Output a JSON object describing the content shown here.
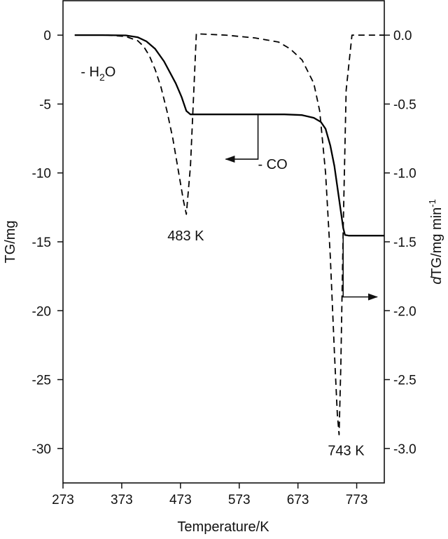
{
  "chart_data": {
    "type": "line",
    "xlabel": "Temperature/K",
    "ylabel": "TG/mg",
    "y2label_prefix": "d",
    "y2label_rest": "TG/mg min",
    "y2label_sup": "-1",
    "xlim": [
      273,
      820
    ],
    "ylim": [
      -32.5,
      2.5
    ],
    "y2lim": [
      -3.25,
      0.25
    ],
    "xticks": [
      "273",
      "373",
      "473",
      "573",
      "673",
      "773"
    ],
    "xtick_values": [
      273,
      373,
      473,
      573,
      673,
      773
    ],
    "yticks": [
      "0",
      "-5",
      "-10",
      "-15",
      "-20",
      "-25",
      "-30"
    ],
    "ytick_values": [
      0,
      -5,
      -10,
      -15,
      -20,
      -25,
      -30
    ],
    "y2ticks": [
      "0.0",
      "-0.5",
      "-1.0",
      "-1.5",
      "-2.0",
      "-2.5",
      "-3.0"
    ],
    "y2tick_values": [
      0,
      -0.5,
      -1.0,
      -1.5,
      -2.0,
      -2.5,
      -3.0
    ],
    "series": [
      {
        "axis": "left",
        "line_style": "solid",
        "x": [
          293,
          340,
          380,
          400,
          415,
          430,
          445,
          455,
          465,
          475,
          483,
          490,
          500,
          550,
          600,
          650,
          680,
          700,
          712,
          720,
          728,
          735,
          740,
          745,
          750,
          753,
          760,
          780,
          800,
          820
        ],
        "y": [
          0,
          0,
          -0.02,
          -0.15,
          -0.45,
          -1.0,
          -1.9,
          -2.7,
          -3.5,
          -4.5,
          -5.5,
          -5.75,
          -5.75,
          -5.75,
          -5.75,
          -5.75,
          -5.8,
          -6.0,
          -6.3,
          -6.8,
          -8.0,
          -9.5,
          -11.0,
          -12.5,
          -14.0,
          -14.5,
          -14.55,
          -14.55,
          -14.55,
          -14.55
        ]
      },
      {
        "axis": "right",
        "line_style": "dashed",
        "x": [
          293,
          350,
          380,
          400,
          410,
          420,
          430,
          440,
          450,
          460,
          470,
          478,
          483,
          490,
          500,
          550,
          600,
          640,
          660,
          680,
          700,
          710,
          720,
          728,
          735,
          740,
          743,
          746,
          750,
          755,
          765,
          820
        ],
        "y": [
          0,
          0,
          -0.01,
          -0.04,
          -0.08,
          -0.15,
          -0.25,
          -0.38,
          -0.55,
          -0.75,
          -1.0,
          -1.2,
          -1.3,
          -0.95,
          0.01,
          0,
          -0.02,
          -0.05,
          -0.1,
          -0.18,
          -0.35,
          -0.55,
          -1.0,
          -1.6,
          -2.3,
          -2.75,
          -2.9,
          -2.4,
          -1.4,
          -0.4,
          0,
          0
        ]
      }
    ],
    "annotations": [
      {
        "kind": "label",
        "text_main": "- H",
        "text_sub": "2",
        "text_tail": "O",
        "x": 333,
        "y": -3.0
      },
      {
        "kind": "label",
        "text_main": "- CO",
        "x": 630,
        "y": -9.7
      },
      {
        "kind": "label",
        "text": "483 K",
        "x": 482,
        "y": -14.9
      },
      {
        "kind": "label",
        "text": "743 K",
        "x": 755,
        "y": -30.5
      }
    ],
    "axis_arrows": [
      {
        "points_to": "left-axis",
        "from_x": 605,
        "from_y": -5.75,
        "to_x": 605,
        "to_y": -9.0,
        "end_x": 550
      },
      {
        "points_to": "right-axis",
        "from_x": 750,
        "from_y": -14.55,
        "to_x": 750,
        "to_y": -19.0,
        "end_x": 808
      }
    ],
    "grid": false,
    "legend": "none"
  }
}
